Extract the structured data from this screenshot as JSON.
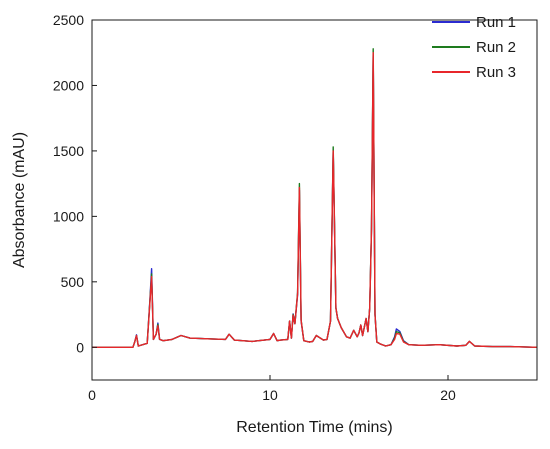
{
  "chart_data": {
    "type": "line",
    "title": "",
    "xlabel": "Retention Time (mins)",
    "ylabel": "Absorbance (mAU)",
    "xlim": [
      0,
      25
    ],
    "ylim": [
      -250,
      2500
    ],
    "xticks": [
      0,
      10,
      20
    ],
    "yticks": [
      0,
      500,
      1000,
      1500,
      2000,
      2500
    ],
    "grid": false,
    "legend_position": "top-right",
    "series": [
      {
        "name": "Run 1",
        "color": "#2b2bd0",
        "x": [
          0,
          2.3,
          2.4,
          2.5,
          2.6,
          3.1,
          3.25,
          3.35,
          3.45,
          3.6,
          3.7,
          3.8,
          4.0,
          4.5,
          5.0,
          5.5,
          6.5,
          7.5,
          7.7,
          8.0,
          9.0,
          10.0,
          10.2,
          10.4,
          10.6,
          11.0,
          11.1,
          11.2,
          11.3,
          11.4,
          11.55,
          11.65,
          11.75,
          11.9,
          12.2,
          12.4,
          12.6,
          13.0,
          13.2,
          13.4,
          13.55,
          13.7,
          13.8,
          14.0,
          14.3,
          14.5,
          14.7,
          14.9,
          15.0,
          15.1,
          15.2,
          15.4,
          15.5,
          15.6,
          15.7,
          15.8,
          15.9,
          16.0,
          16.2,
          16.5,
          16.8,
          17.0,
          17.1,
          17.3,
          17.5,
          17.8,
          18.5,
          19.5,
          20.5,
          21.0,
          21.2,
          21.5,
          22.5,
          23.5,
          25.0
        ],
        "y": [
          0,
          0,
          40,
          95,
          10,
          30,
          350,
          600,
          60,
          100,
          185,
          60,
          50,
          60,
          90,
          70,
          65,
          60,
          100,
          55,
          45,
          60,
          105,
          50,
          55,
          60,
          200,
          70,
          255,
          180,
          400,
          1200,
          200,
          50,
          40,
          45,
          90,
          55,
          60,
          200,
          1500,
          300,
          220,
          150,
          80,
          70,
          130,
          80,
          110,
          170,
          90,
          220,
          120,
          300,
          900,
          2230,
          250,
          40,
          25,
          10,
          20,
          80,
          140,
          120,
          50,
          20,
          15,
          20,
          10,
          15,
          45,
          10,
          5,
          5,
          0
        ]
      },
      {
        "name": "Run 2",
        "color": "#1e7b1e",
        "x": [
          0,
          2.3,
          2.4,
          2.5,
          2.6,
          3.1,
          3.25,
          3.35,
          3.45,
          3.6,
          3.7,
          3.8,
          4.0,
          4.5,
          5.0,
          5.5,
          6.5,
          7.5,
          7.7,
          8.0,
          9.0,
          10.0,
          10.2,
          10.4,
          10.6,
          11.0,
          11.1,
          11.2,
          11.3,
          11.4,
          11.55,
          11.65,
          11.75,
          11.9,
          12.2,
          12.4,
          12.6,
          13.0,
          13.2,
          13.4,
          13.55,
          13.7,
          13.8,
          14.0,
          14.3,
          14.5,
          14.7,
          14.9,
          15.0,
          15.1,
          15.2,
          15.4,
          15.5,
          15.6,
          15.7,
          15.8,
          15.9,
          16.0,
          16.2,
          16.5,
          16.8,
          17.0,
          17.1,
          17.3,
          17.5,
          17.8,
          18.5,
          19.5,
          20.5,
          21.0,
          21.2,
          21.5,
          22.5,
          23.5,
          25.0
        ],
        "y": [
          0,
          0,
          40,
          90,
          10,
          30,
          340,
          560,
          60,
          100,
          175,
          60,
          50,
          60,
          90,
          70,
          65,
          60,
          100,
          55,
          45,
          60,
          105,
          50,
          55,
          60,
          200,
          70,
          250,
          180,
          420,
          1250,
          210,
          50,
          40,
          45,
          90,
          55,
          60,
          200,
          1530,
          300,
          220,
          150,
          80,
          70,
          130,
          80,
          110,
          170,
          90,
          220,
          120,
          300,
          920,
          2280,
          250,
          40,
          25,
          10,
          20,
          70,
          120,
          110,
          45,
          20,
          15,
          20,
          10,
          15,
          45,
          10,
          5,
          5,
          0
        ]
      },
      {
        "name": "Run 3",
        "color": "#e8262b",
        "x": [
          0,
          2.3,
          2.4,
          2.5,
          2.6,
          3.1,
          3.25,
          3.35,
          3.45,
          3.6,
          3.7,
          3.8,
          4.0,
          4.5,
          5.0,
          5.5,
          6.5,
          7.5,
          7.7,
          8.0,
          9.0,
          10.0,
          10.2,
          10.4,
          10.6,
          11.0,
          11.1,
          11.2,
          11.3,
          11.4,
          11.55,
          11.65,
          11.75,
          11.9,
          12.2,
          12.4,
          12.6,
          13.0,
          13.2,
          13.4,
          13.55,
          13.7,
          13.8,
          14.0,
          14.3,
          14.5,
          14.7,
          14.9,
          15.0,
          15.1,
          15.2,
          15.4,
          15.5,
          15.6,
          15.7,
          15.8,
          15.9,
          16.0,
          16.2,
          16.5,
          16.8,
          17.0,
          17.1,
          17.3,
          17.5,
          17.8,
          18.5,
          19.5,
          20.5,
          21.0,
          21.2,
          21.5,
          22.5,
          23.5,
          25.0
        ],
        "y": [
          0,
          0,
          40,
          90,
          10,
          30,
          330,
          540,
          60,
          100,
          165,
          60,
          50,
          60,
          90,
          70,
          65,
          60,
          100,
          55,
          45,
          60,
          105,
          50,
          55,
          60,
          200,
          70,
          245,
          180,
          410,
          1220,
          205,
          50,
          40,
          45,
          90,
          55,
          60,
          200,
          1500,
          300,
          220,
          150,
          80,
          70,
          130,
          80,
          110,
          170,
          90,
          220,
          120,
          300,
          900,
          2250,
          250,
          40,
          25,
          10,
          20,
          60,
          105,
          100,
          40,
          20,
          15,
          20,
          10,
          15,
          45,
          10,
          5,
          5,
          0
        ]
      }
    ]
  }
}
